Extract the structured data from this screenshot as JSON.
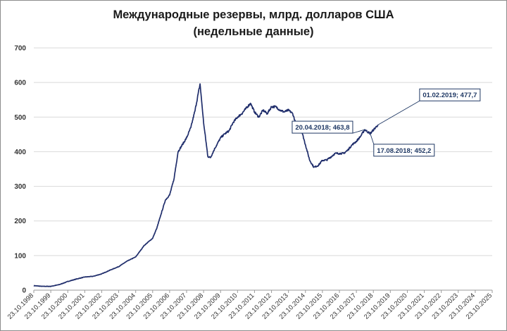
{
  "chart_data": {
    "type": "line",
    "title": "Международные резервы, млрд. долларов США",
    "subtitle": "(недельные данные)",
    "xlabel": "",
    "ylabel": "",
    "ylim": [
      0,
      700
    ],
    "yticks": [
      "0",
      "100",
      "200",
      "300",
      "400",
      "500",
      "600",
      "700"
    ],
    "xlim": [
      "1998-10-23",
      "2025-10-23"
    ],
    "xticks": [
      "23.10.1998",
      "23.10.1999",
      "23.10.2000",
      "23.10.2001",
      "23.10.2002",
      "23.10.2003",
      "23.10.2004",
      "23.10.2005",
      "23.10.2006",
      "23.10.2007",
      "23.10.2008",
      "23.10.2009",
      "23.10.2010",
      "23.10.2011",
      "23.10.2012",
      "23.10.2013",
      "23.10.2014",
      "23.10.2015",
      "23.10.2016",
      "23.10.2017",
      "23.10.2018",
      "23.10.2019",
      "23.10.2020",
      "23.10.2021",
      "23.10.2022",
      "23.10.2023",
      "23.10.2024",
      "23.10.2025"
    ],
    "grid": true,
    "line_color": "#1f2d6b",
    "series": [
      {
        "x": [
          "1998-10-23",
          "1999-04-23",
          "1999-10-23",
          "2000-04-23",
          "2000-10-23",
          "2001-04-23",
          "2001-10-23",
          "2002-04-23",
          "2002-10-23",
          "2003-04-23",
          "2003-10-23",
          "2004-04-23",
          "2004-10-23",
          "2005-04-23",
          "2005-10-23",
          "2006-01-23",
          "2006-04-23",
          "2006-07-23",
          "2006-10-23",
          "2007-01-23",
          "2007-04-23",
          "2007-07-23",
          "2007-10-23",
          "2008-01-23",
          "2008-04-23",
          "2008-08-08",
          "2008-10-23",
          "2009-01-23",
          "2009-03-20",
          "2009-06-23",
          "2009-10-23",
          "2010-01-23",
          "2010-04-23",
          "2010-07-23",
          "2010-10-23",
          "2011-01-23",
          "2011-04-23",
          "2011-07-29",
          "2011-10-23",
          "2012-01-23",
          "2012-04-23",
          "2012-07-23",
          "2012-10-23",
          "2013-01-23",
          "2013-04-23",
          "2013-07-23",
          "2013-10-23",
          "2014-01-23",
          "2014-04-23",
          "2014-07-23",
          "2014-10-23",
          "2015-01-23",
          "2015-04-23",
          "2015-07-23",
          "2015-10-23",
          "2016-01-23",
          "2016-04-23",
          "2016-07-23",
          "2016-10-23",
          "2017-01-23",
          "2017-04-23",
          "2017-07-23",
          "2017-10-23",
          "2018-01-23",
          "2018-04-20",
          "2018-08-17",
          "2018-10-23",
          "2019-02-01"
        ],
        "values": [
          13,
          11,
          11,
          16,
          25,
          32,
          38,
          40,
          47,
          58,
          68,
          84,
          96,
          129,
          150,
          180,
          220,
          260,
          275,
          320,
          400,
          420,
          440,
          470,
          520,
          596,
          484,
          386,
          383,
          410,
          440,
          452,
          460,
          485,
          500,
          510,
          525,
          540,
          515,
          500,
          520,
          510,
          530,
          530,
          520,
          515,
          520,
          510,
          470,
          465,
          420,
          375,
          355,
          360,
          375,
          376,
          385,
          395,
          395,
          395,
          405,
          420,
          430,
          445,
          463.8,
          452.2,
          463,
          477.7
        ]
      }
    ],
    "annotations": [
      {
        "text": "01.02.2019;  477,7",
        "x": "2019-02-01",
        "y": 477.7
      },
      {
        "text": "20.04.2018;  463,8",
        "x": "2018-04-20",
        "y": 463.8
      },
      {
        "text": "17.08.2018;  452,2",
        "x": "2018-08-17",
        "y": 452.2
      }
    ]
  }
}
